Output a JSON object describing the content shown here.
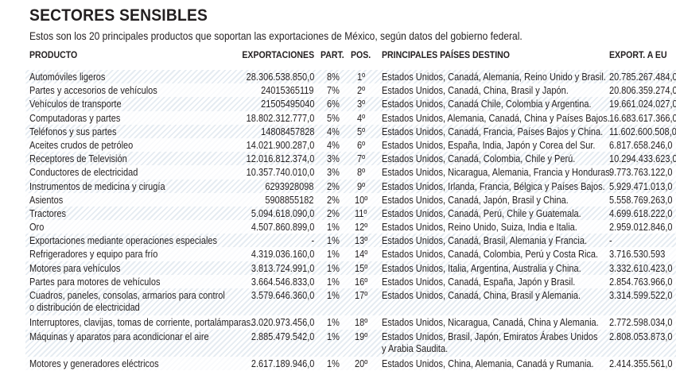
{
  "title": "SECTORES SENSIBLES",
  "subtitle": "Estos son los 20 principales productos que soportan las exportaciones de México, según datos del gobierno federal.",
  "headers": {
    "product": "PRODUCTO",
    "exports": "EXPORTACIONES",
    "part": "PART.",
    "pos": "POS.",
    "dest": "PRINCIPALES PAÍSES DESTINO",
    "eu": "EXPORT. A EU"
  },
  "rows": [
    {
      "product": "Automóviles ligeros",
      "exports": "28.306.538.850,0",
      "part": "8%",
      "pos": "1º",
      "dest": "Estados Unidos, Canadá, Alemania, Reino Unido y Brasil.",
      "eu": "20.785.267.484,0"
    },
    {
      "product": "Partes y accesorios de vehículos",
      "exports": "24015365119",
      "part": "7%",
      "pos": "2º",
      "dest": "Estados Unidos, Canadá, China, Brasil y Japón.",
      "eu": "20.806.359.274,0"
    },
    {
      "product": "Vehículos de transporte",
      "exports": "21505495040",
      "part": "6%",
      "pos": "3º",
      "dest": "Estados Unidos, Canadá Chile, Colombia y Argentina.",
      "eu": "19.661.024.027,0"
    },
    {
      "product": "Computadoras y partes",
      "exports": "18.802.312.777,0",
      "part": "5%",
      "pos": "4º",
      "dest": "Estados Unidos, Alemania, Canadá, China y Países Bajos.",
      "eu": "16.683.617.366,0"
    },
    {
      "product": "Teléfonos y sus partes",
      "exports": "14808457828",
      "part": "4%",
      "pos": "5º",
      "dest": "Estados Unidos, Canadá, Francia, Países Bajos y China.",
      "eu": "11.602.600.508,0"
    },
    {
      "product": "Aceites crudos de petróleo",
      "exports": "14.021.900.287,0",
      "part": "4%",
      "pos": "6º",
      "dest": "Estados Unidos, España, India, Japón y Corea del Sur.",
      "eu": "6.817.658.246,0"
    },
    {
      "product": "Receptores de Televisión",
      "exports": "12.016.812.374,0",
      "part": "3%",
      "pos": "7º",
      "dest": "Estados Unidos, Canadá, Colombia, Chile y Perú.",
      "eu": "10.294.433.623,0"
    },
    {
      "product": "Conductores de electricidad",
      "exports": "10.357.740.010,0",
      "part": "3%",
      "pos": "8º",
      "dest": "Estados Unidos, Nicaragua, Alemania, Francia y Honduras.",
      "eu": "9.773.763.122,0"
    },
    {
      "product": "Instrumentos de medicina y cirugía",
      "exports": "6293928098",
      "part": "2%",
      "pos": "9º",
      "dest": "Estados Unidos, Irlanda, Francia, Bélgica y Países Bajos.",
      "eu": "5.929.471.013,0"
    },
    {
      "product": "Asientos",
      "exports": "5908855182",
      "part": "2%",
      "pos": "10º",
      "dest": "Estados Unidos, Canadá, Japón, Brasil y China.",
      "eu": "5.558.769.263,0"
    },
    {
      "product": "Tractores",
      "exports": "5.094.618.090,0",
      "part": "2%",
      "pos": "11º",
      "dest": "Estados Unidos, Canadá, Perú, Chile y Guatemala.",
      "eu": "4.699.618.222,0"
    },
    {
      "product": "Oro",
      "exports": "4.507.860.899,0",
      "part": "1%",
      "pos": "12º",
      "dest": "Estados Unidos, Reino Unido, Suiza, India e Italia.",
      "eu": "2.959.012.846,0"
    },
    {
      "product": "Exportaciones mediante operaciones especiales",
      "exports": "-",
      "part": "1%",
      "pos": "13º",
      "dest": "Estados Unidos, Canadá, Brasil, Alemania y Francia.",
      "eu": "-"
    },
    {
      "product": "Refrigeradores y equipo para frío",
      "exports": "4.319.036.160,0",
      "part": "1%",
      "pos": "14º",
      "dest": "Estados Unidos, Canadá, Colombia, Perú y Costa Rica.",
      "eu": "3.716.530.593"
    },
    {
      "product": "Motores para vehículos",
      "exports": "3.813.724.991,0",
      "part": "1%",
      "pos": "15º",
      "dest": "Estados Unidos, Italia, Argentina, Australia y China.",
      "eu": "3.332.610.423,0"
    },
    {
      "product": "Partes para motores de vehículos",
      "exports": "3.664.546.833,0",
      "part": "1%",
      "pos": "16º",
      "dest": "Estados Unidos, Canadá, España, Japón y Brasil.",
      "eu": "2.854.763.966,0"
    },
    {
      "product": "Cuadros, paneles, consolas, armarios para control",
      "product2": "o distribución de electricidad",
      "exports": "3.579.646.360,0",
      "part": "1%",
      "pos": "17º",
      "dest": "Estados Unidos, Canadá, China, Brasil y Alemania.",
      "eu": "3.314.599.522,0"
    },
    {
      "product": "Interruptores, clavijas, tomas de corriente, portalámparas.",
      "exports": "3.020.973.456,0",
      "part": "1%",
      "pos": "18º",
      "dest": "Estados Unidos, Nicaragua, Canadá, China y Alemania.",
      "eu": "2.772.598.034,0"
    },
    {
      "product": "Máquinas y aparatos para acondicionar el aire",
      "exports": "2.885.479.542,0",
      "part": "1%",
      "pos": "19º",
      "dest": "Estados Unidos, Brasil, Japón, Emiratos Árabes Unidos",
      "dest2": "y Arabia Saudita.",
      "eu": "2.808.053.873,0"
    },
    {
      "product": "Motores y generadores eléctricos",
      "exports": "2.617.189.946,0",
      "part": "1%",
      "pos": "20º",
      "dest": "Estados Unidos, China, Alemania, Canadá y Rumania.",
      "eu": "2.414.355.561,0"
    }
  ]
}
